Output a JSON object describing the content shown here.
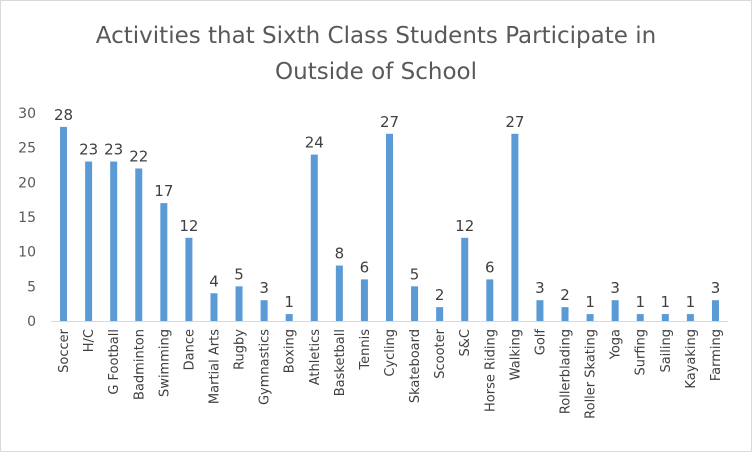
{
  "chart_data": {
    "type": "bar",
    "title_lines": [
      "Activities that Sixth Class Students Participate in",
      "Outside of School"
    ],
    "xlabel": "",
    "ylabel": "",
    "ylim": [
      0,
      30
    ],
    "yticks": [
      0,
      5,
      10,
      15,
      20,
      25,
      30
    ],
    "grid": false,
    "legend": "none",
    "bar_color": "#5b9bd5",
    "categories": [
      "Soccer",
      "H/C",
      "G Football",
      "Badminton",
      "Swimming",
      "Dance",
      "Martial Arts",
      "Rugby",
      "Gymnastics",
      "Boxing",
      "Athletics",
      "Basketball",
      "Tennis",
      "Cycling",
      "Skateboard",
      "Scooter",
      "S&C",
      "Horse Riding",
      "Walking",
      "Golf",
      "Rollerblading",
      "Roller Skating",
      "Yoga",
      "Surfing",
      "Sailing",
      "Kayaking",
      "Farming"
    ],
    "values": [
      28,
      23,
      23,
      22,
      17,
      12,
      4,
      5,
      3,
      1,
      24,
      8,
      6,
      27,
      5,
      2,
      12,
      6,
      27,
      3,
      2,
      1,
      3,
      1,
      1,
      1,
      3
    ]
  }
}
